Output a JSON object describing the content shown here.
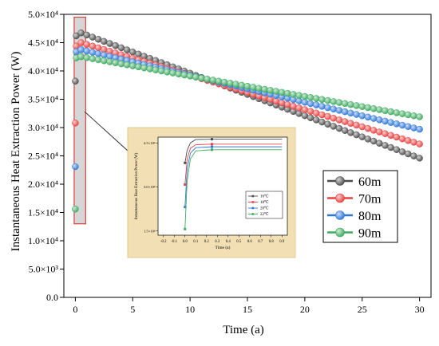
{
  "chart_data": [
    {
      "type": "scatter",
      "xlabel": "Time (a)",
      "ylabel": "Instantaneous Heat Extraction Power (W)",
      "xlim": [
        -1,
        31
      ],
      "ylim": [
        0,
        50000
      ],
      "x_ticks": [
        {
          "value": 0,
          "label": "0"
        },
        {
          "value": 5,
          "label": "5"
        },
        {
          "value": 10,
          "label": "10"
        },
        {
          "value": 15,
          "label": "15"
        },
        {
          "value": 20,
          "label": "20"
        },
        {
          "value": 25,
          "label": "25"
        },
        {
          "value": 30,
          "label": "30"
        }
      ],
      "y_ticks": [
        {
          "value": 0,
          "label": "0.0"
        },
        {
          "value": 5000,
          "label": "5.0×10³"
        },
        {
          "value": 10000,
          "label": "1.0×10⁴"
        },
        {
          "value": 15000,
          "label": "1.5×10⁴"
        },
        {
          "value": 20000,
          "label": "2.0×10⁴"
        },
        {
          "value": 25000,
          "label": "2.5×10⁴"
        },
        {
          "value": 30000,
          "label": "3.0×10⁴"
        },
        {
          "value": 35000,
          "label": "3.5×10⁴"
        },
        {
          "value": 40000,
          "label": "4.0×10⁴"
        },
        {
          "value": 45000,
          "label": "4.5×10⁴"
        },
        {
          "value": 50000,
          "label": "5.0×10⁴"
        }
      ],
      "legend_position": "right",
      "series": [
        {
          "name": "60m",
          "color": "#4d4d4d",
          "start": [
            [
              0,
              38200
            ],
            [
              0.08,
              46200
            ]
          ],
          "y0": 47100,
          "y30": 24600
        },
        {
          "name": "70m",
          "color": "#e84040",
          "start": [
            [
              0,
              30800
            ],
            [
              0.08,
              44400
            ]
          ],
          "y0": 45300,
          "y30": 27100
        },
        {
          "name": "80m",
          "color": "#2f78d8",
          "start": [
            [
              0,
              23100
            ],
            [
              0.08,
              43400
            ]
          ],
          "y0": 44000,
          "y30": 29700
        },
        {
          "name": "90m",
          "color": "#3daa5f",
          "start": [
            [
              0,
              15600
            ],
            [
              0.08,
              42300
            ]
          ],
          "y0": 42700,
          "y30": 31900
        }
      ],
      "highlight_box": {
        "x": [
          -0.1,
          0.9
        ],
        "y": [
          13000,
          49500
        ]
      }
    },
    {
      "type": "line",
      "inset": true,
      "xlabel": "Time (a)",
      "ylabel": "Instantaneous Heat Extraction Power (W)",
      "xlim": [
        -0.25,
        0.95
      ],
      "ylim": [
        13500,
        47000
      ],
      "x_ticks": [
        "-0.2",
        "-0.1",
        "0.0",
        "0.1",
        "0.2",
        "0.3",
        "0.4",
        "0.5",
        "0.6",
        "0.7",
        "0.8",
        "0.9"
      ],
      "y_ticks": [
        {
          "value": 15000,
          "label": "1.5×10⁴"
        },
        {
          "value": 30000,
          "label": "3.0×10⁴"
        },
        {
          "value": 45000,
          "label": "4.5×10⁴"
        }
      ],
      "legend_position": "lower-right",
      "series": [
        {
          "name": "16℃",
          "color": "#4d4d4d",
          "x": [
            0,
            0.02,
            0.05,
            0.1,
            0.25,
            0.9
          ],
          "y": [
            38200,
            42500,
            45000,
            46200,
            46300,
            46300
          ]
        },
        {
          "name": "18℃",
          "color": "#e84040",
          "x": [
            0,
            0.02,
            0.05,
            0.1,
            0.25,
            0.9
          ],
          "y": [
            30800,
            39500,
            43200,
            44400,
            44600,
            44600
          ]
        },
        {
          "name": "20℃",
          "color": "#2f78d8",
          "x": [
            0,
            0.02,
            0.05,
            0.1,
            0.25,
            0.9
          ],
          "y": [
            23100,
            36000,
            41500,
            43400,
            43700,
            43700
          ]
        },
        {
          "name": "22℃",
          "color": "#3daa5f",
          "x": [
            0,
            0.02,
            0.05,
            0.1,
            0.25,
            0.9
          ],
          "y": [
            15600,
            32000,
            39500,
            42300,
            42700,
            42700
          ]
        }
      ]
    }
  ]
}
